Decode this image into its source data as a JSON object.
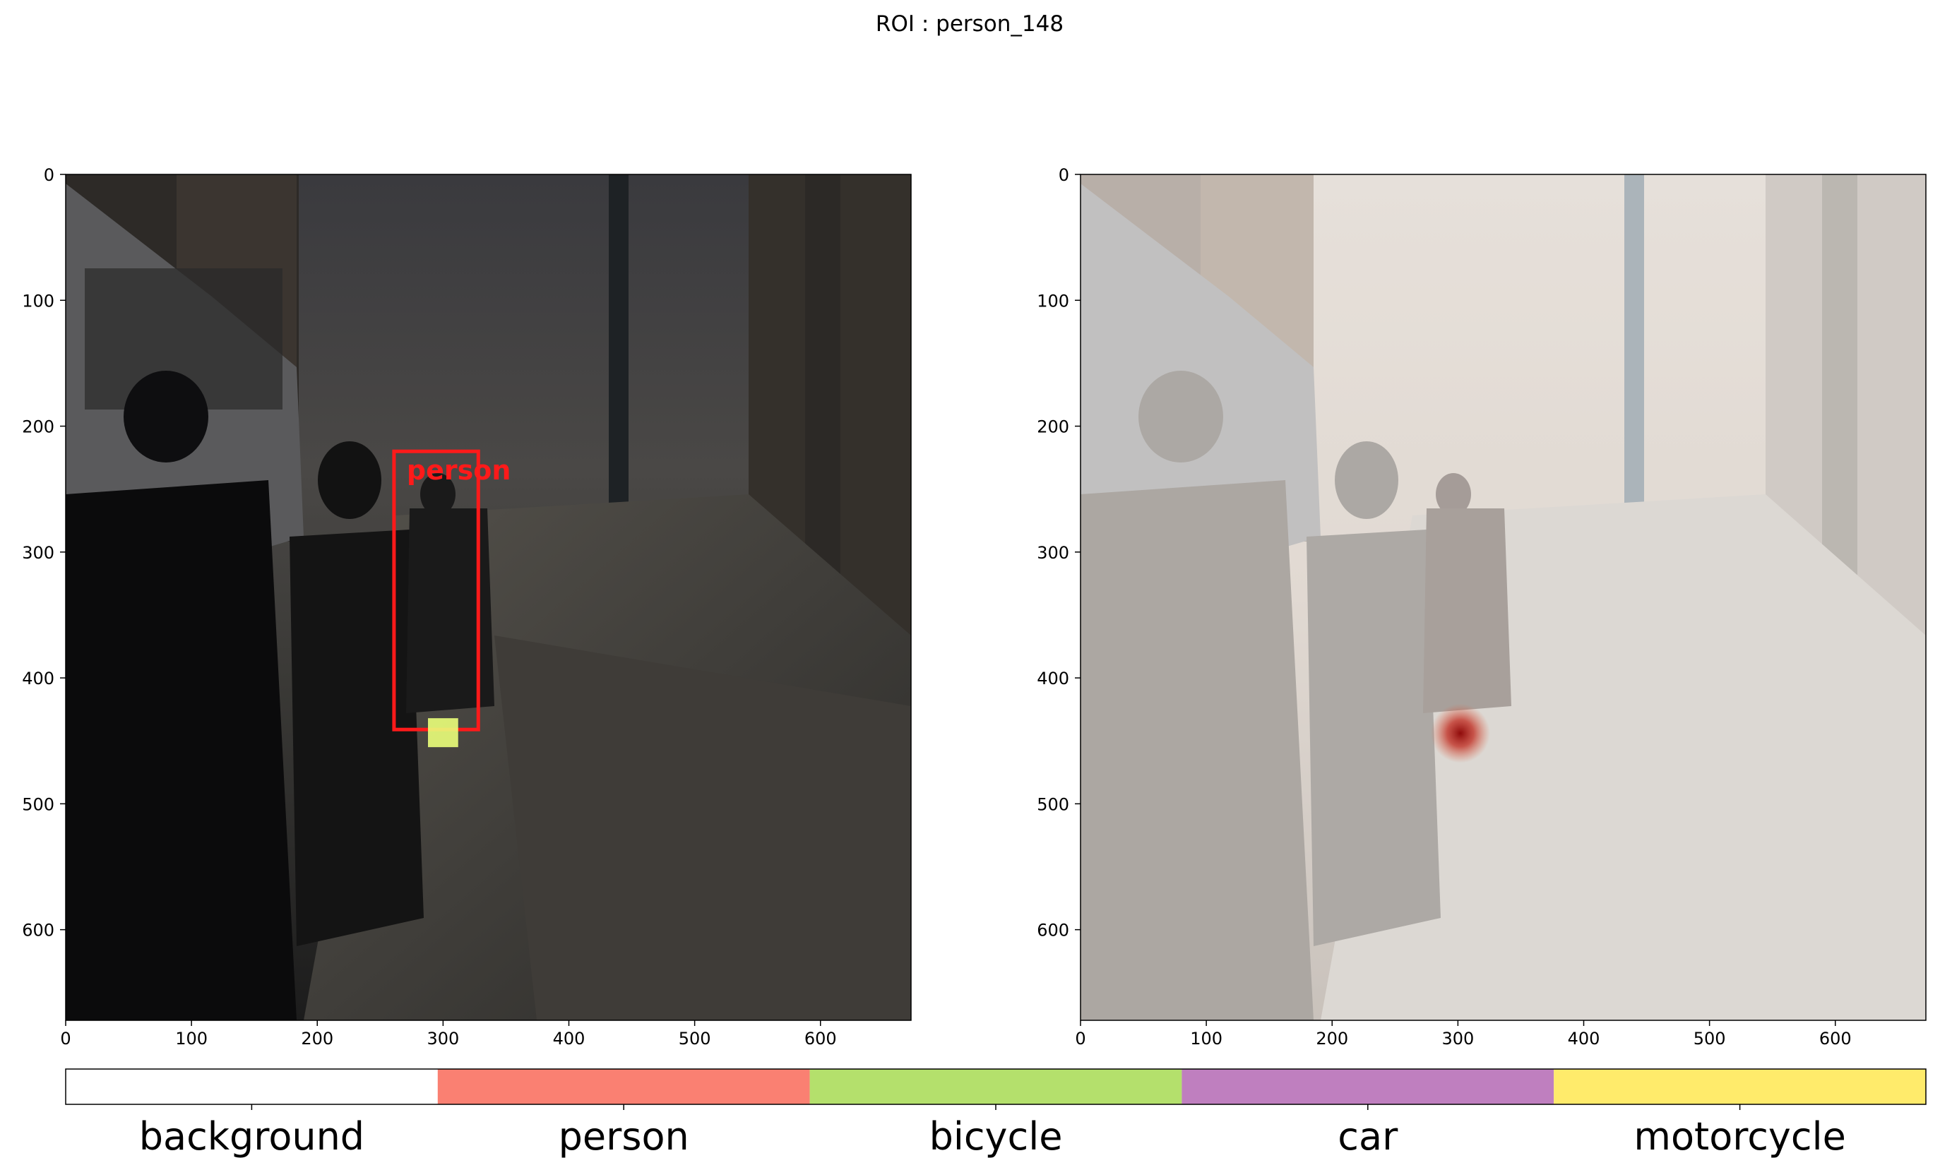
{
  "title": "ROI : person_148",
  "chart_data": [
    {
      "type": "image",
      "panel": "left",
      "description_visible": false,
      "xlim": [
        0,
        672
      ],
      "ylim": [
        672,
        0
      ],
      "xticks": [
        0,
        100,
        200,
        300,
        400,
        500,
        600
      ],
      "yticks": [
        0,
        100,
        200,
        300,
        400,
        500,
        600
      ],
      "detection": {
        "label": "person",
        "x0": 261,
        "y0": 220,
        "x1": 328,
        "y1": 441,
        "color": "#ff1a1a"
      },
      "highlight_patch": {
        "x0": 288,
        "y0": 432,
        "x1": 312,
        "y1": 455,
        "color": "#eaff7a"
      }
    },
    {
      "type": "image",
      "panel": "right",
      "xlim": [
        0,
        672
      ],
      "ylim": [
        672,
        0
      ],
      "xticks": [
        0,
        100,
        200,
        300,
        400,
        500,
        600
      ],
      "yticks": [
        0,
        100,
        200,
        300,
        400,
        500,
        600
      ],
      "heat_peak": {
        "x": 302,
        "y": 444,
        "color": "#8b0000"
      }
    },
    {
      "type": "colorbar",
      "categories": [
        "background",
        "person",
        "bicycle",
        "car",
        "motorcycle"
      ],
      "colors": [
        "#ffffff",
        "#fa8072",
        "#b4e06c",
        "#bf7fbf",
        "#ffeb6b"
      ]
    }
  ]
}
